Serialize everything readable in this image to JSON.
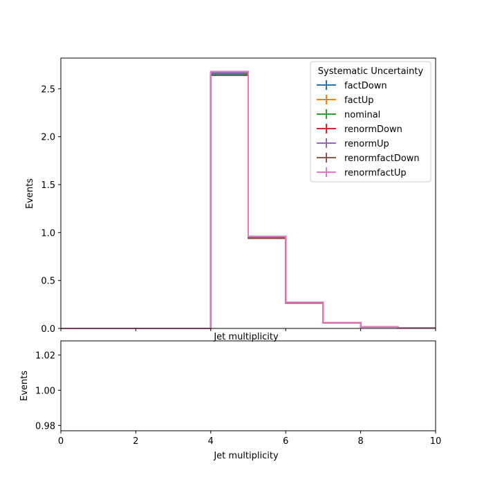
{
  "chart_data": [
    {
      "type": "step",
      "xlabel": "Jet multiplicity",
      "ylabel": "Events",
      "xlim": [
        0,
        10
      ],
      "ylim": [
        0,
        2.82
      ],
      "xticks": [
        0,
        2,
        4,
        6,
        8,
        10
      ],
      "show_xtick_labels": false,
      "yticks": [
        0.0,
        0.5,
        1.0,
        1.5,
        2.0,
        2.5
      ],
      "ytick_labels": [
        "0.0",
        "0.5",
        "1.0",
        "1.5",
        "2.0",
        "2.5"
      ],
      "grid": false,
      "bin_edges": [
        0,
        1,
        2,
        3,
        4,
        5,
        6,
        7,
        8,
        9,
        10
      ],
      "legend": {
        "title": "Systematic Uncertainty",
        "position": "top-right"
      },
      "series": [
        {
          "name": "factDown",
          "color": "#1f77b4",
          "values": [
            0,
            0,
            0,
            0,
            2.65,
            0.95,
            0.27,
            0.06,
            0.015,
            0.005
          ]
        },
        {
          "name": "factUp",
          "color": "#ff7f0e",
          "values": [
            0,
            0,
            0,
            0,
            2.66,
            0.95,
            0.27,
            0.06,
            0.015,
            0.005
          ]
        },
        {
          "name": "nominal",
          "color": "#2ca02c",
          "values": [
            0,
            0,
            0,
            0,
            2.66,
            0.95,
            0.27,
            0.06,
            0.015,
            0.005
          ]
        },
        {
          "name": "renormDown",
          "color": "#d62728",
          "values": [
            0,
            0,
            0,
            0,
            2.64,
            0.94,
            0.265,
            0.058,
            0.014,
            0.005
          ]
        },
        {
          "name": "renormUp",
          "color": "#9467bd",
          "values": [
            0,
            0,
            0,
            0,
            2.67,
            0.96,
            0.272,
            0.061,
            0.016,
            0.005
          ]
        },
        {
          "name": "renormfactDown",
          "color": "#8c564b",
          "values": [
            0,
            0,
            0,
            0,
            2.64,
            0.94,
            0.265,
            0.058,
            0.014,
            0.005
          ]
        },
        {
          "name": "renormfactUp",
          "color": "#e377c2",
          "values": [
            0,
            0,
            0,
            0,
            2.68,
            0.96,
            0.272,
            0.061,
            0.016,
            0.005
          ]
        }
      ]
    },
    {
      "type": "line",
      "xlabel": "Jet multiplicity",
      "ylabel": "Events",
      "xlim": [
        0,
        10
      ],
      "ylim": [
        0.977,
        1.028
      ],
      "xticks": [
        0,
        2,
        4,
        6,
        8,
        10
      ],
      "xtick_labels": [
        "0",
        "2",
        "4",
        "6",
        "8",
        "10"
      ],
      "yticks": [
        0.98,
        1.0,
        1.02
      ],
      "ytick_labels": [
        "0.98",
        "1.00",
        "1.02"
      ],
      "grid": false,
      "series": []
    }
  ]
}
